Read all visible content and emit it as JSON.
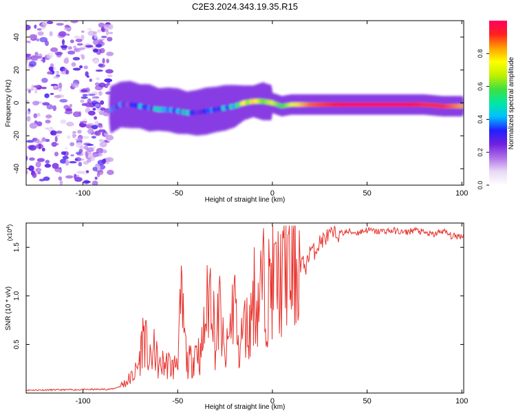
{
  "figure_title": "C2E3.2024.343.19.35.R15",
  "chart_data": [
    {
      "type": "heatmap",
      "title": "C2E3.2024.343.19.35.R15",
      "xlabel": "Height of straight line (km)",
      "ylabel": "Frequency (Hz)",
      "xlim": [
        -130,
        101
      ],
      "ylim": [
        -50,
        50
      ],
      "xticks": [
        -100,
        -50,
        0,
        50,
        100
      ],
      "yticks": [
        -40,
        -20,
        0,
        20,
        40
      ],
      "xtick_labels": [
        "-100",
        "-50",
        "0",
        "50",
        "100"
      ],
      "ytick_labels": [
        "-40",
        "-20",
        "0",
        "20",
        "40"
      ],
      "colorbar": {
        "label": "Normalized spectral amplitude",
        "range": [
          0,
          1
        ],
        "ticks": [
          0.0,
          0.2,
          0.4,
          0.6,
          0.8
        ],
        "tick_labels": [
          "0.0",
          "0.2",
          "0.4",
          "0.6",
          "0.8"
        ],
        "colormap": [
          "#ffffff",
          "#e8d8f6",
          "#b070e8",
          "#7020e0",
          "#2020ff",
          "#00c0ff",
          "#00e8a0",
          "#40e040",
          "#c0f000",
          "#ffff00",
          "#ffa000",
          "#ff2020",
          "#ff0060"
        ]
      },
      "trace": {
        "x": [
          -85,
          -80,
          -75,
          -70,
          -65,
          -60,
          -55,
          -50,
          -45,
          -40,
          -35,
          -30,
          -25,
          -20,
          -15,
          -10,
          -5,
          0,
          5,
          10,
          20,
          30,
          40,
          50,
          60,
          70,
          80,
          90,
          100
        ],
        "freq": [
          -4,
          -1,
          -1,
          -2,
          -3,
          -4,
          -4,
          -5,
          -6,
          -6,
          -5,
          -4,
          -3,
          -2,
          0,
          1,
          1,
          0,
          -2,
          -1,
          -1,
          -1,
          -1,
          -1,
          -1,
          -1,
          -1,
          -2,
          -2
        ],
        "amplitude": [
          0.3,
          0.35,
          0.3,
          0.4,
          0.3,
          0.45,
          0.4,
          0.35,
          0.45,
          0.35,
          0.3,
          0.35,
          0.35,
          0.45,
          0.7,
          0.8,
          0.6,
          0.7,
          0.55,
          0.7,
          0.85,
          0.9,
          0.95,
          0.95,
          0.95,
          0.95,
          0.9,
          0.9,
          0.8
        ]
      },
      "noise_region_x": [
        -130,
        -85
      ]
    },
    {
      "type": "line",
      "xlabel": "Height of straight line (km)",
      "ylabel": "SNR (10 * v/v)",
      "y_multiplier": "(x10^4)",
      "xlim": [
        -130,
        101
      ],
      "ylim": [
        0,
        17500
      ],
      "xticks": [
        -100,
        -50,
        0,
        50,
        100
      ],
      "yticks": [
        5000,
        10000,
        15000
      ],
      "xtick_labels": [
        "-100",
        "-50",
        "0",
        "50",
        "100"
      ],
      "ytick_labels": [
        "0.5",
        "1.0",
        "1.5"
      ],
      "color": "#e8302a",
      "series": [
        {
          "x": [
            -130,
            -100,
            -85,
            -80,
            -75,
            -72,
            -70,
            -68,
            -65,
            -62,
            -60,
            -58,
            -55,
            -52,
            -50,
            -48,
            -45,
            -42,
            -40,
            -38,
            -35,
            -32,
            -30,
            -28,
            -25,
            -22,
            -20,
            -18,
            -15,
            -12,
            -10,
            -8,
            -5,
            -3,
            0,
            3,
            5,
            8,
            10,
            12,
            15,
            18,
            20,
            22,
            25,
            28,
            30,
            35,
            40,
            45,
            50,
            55,
            60,
            65,
            70,
            75,
            80,
            85,
            90,
            95,
            100
          ],
          "y": [
            300,
            350,
            400,
            700,
            1500,
            2200,
            3500,
            6500,
            3000,
            4500,
            2500,
            3000,
            3000,
            2500,
            4000,
            9000,
            3000,
            3500,
            5000,
            3500,
            8000,
            12000,
            4000,
            9000,
            3000,
            7000,
            10500,
            4000,
            7000,
            6500,
            10500,
            9000,
            11500,
            10000,
            12000,
            11500,
            11500,
            13500,
            12000,
            13000,
            13500,
            13000,
            15000,
            14500,
            15500,
            16000,
            16200,
            16400,
            16600,
            16500,
            16800,
            16600,
            16700,
            16700,
            16500,
            16800,
            16500,
            16300,
            16700,
            16100,
            16200
          ]
        }
      ]
    }
  ]
}
